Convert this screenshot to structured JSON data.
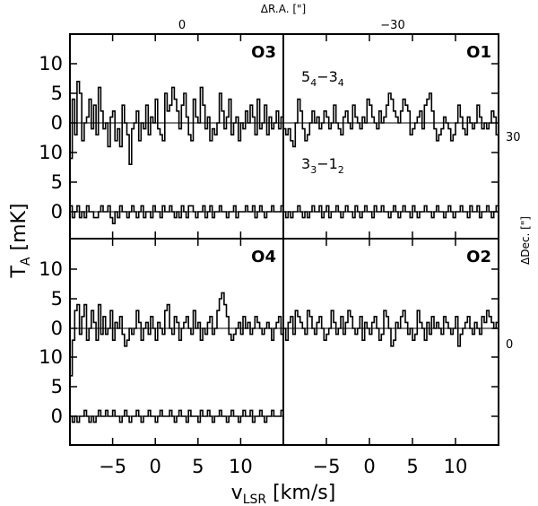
{
  "chart_data": {
    "type": "line",
    "top_axis": {
      "label": "ΔR.A. [\"]",
      "ticks": [
        "0",
        "−30"
      ]
    },
    "right_axis": {
      "label": "ΔDec. [\"]",
      "ticks": [
        "30",
        "0"
      ]
    },
    "ylabel_main": "T",
    "ylabel_sub": "A",
    "ylabel_unit": " [mK]",
    "xlabel_main": "v",
    "xlabel_sub": "LSR",
    "xlabel_unit": " [km/s]",
    "xlim": [
      -10,
      15
    ],
    "x_ticks": [
      -5,
      0,
      5,
      10
    ],
    "x_tick_labels": [
      "−5",
      "0",
      "5",
      "10"
    ],
    "upper_trace_ticks": [
      "0",
      "5",
      "10"
    ],
    "lower_trace_ticks": [
      "0",
      "5",
      "10"
    ],
    "transitions": [
      {
        "main": "5",
        "sub1": "4",
        "dash": "−3",
        "sub2": "4"
      },
      {
        "main": "3",
        "sub1": "3",
        "dash": "−1",
        "sub2": "2"
      }
    ],
    "panels": [
      {
        "label": "O3",
        "upper_values": [
          -6,
          4,
          -2,
          7,
          5,
          -3,
          0,
          1,
          4,
          -1,
          3,
          -2,
          6,
          2,
          -1,
          0,
          -4,
          1,
          2,
          -3,
          -1,
          -4,
          3,
          0,
          -2,
          -7,
          -1,
          0,
          2,
          -3,
          0,
          -1,
          3,
          -2,
          1,
          0,
          4,
          -1,
          -2,
          -3,
          5,
          2,
          3,
          6,
          4,
          2,
          -1,
          3,
          5,
          1,
          -2,
          -3,
          4,
          1,
          0,
          6,
          3,
          -1,
          1,
          -3,
          -1,
          -2,
          0,
          5,
          2,
          -1,
          1,
          4,
          -2,
          0,
          1,
          -3,
          0,
          -1,
          2,
          0,
          3,
          1,
          -2,
          4,
          -1,
          0,
          3,
          -2,
          1,
          -1,
          0,
          2,
          -1,
          1
        ],
        "lower_values": [
          1,
          -1,
          0,
          1,
          -1,
          0,
          -1,
          1,
          0,
          0,
          -1,
          -1,
          0,
          1,
          0,
          0,
          1,
          -1,
          -2,
          0,
          -1,
          1,
          0,
          0,
          -1,
          0,
          1,
          0,
          -1,
          0,
          1,
          -1,
          0,
          0,
          -1,
          1,
          0,
          0,
          -1,
          1,
          0,
          0,
          1,
          0,
          -1,
          0,
          -1,
          1,
          0,
          -1,
          1,
          1,
          0,
          -1,
          0,
          0,
          1,
          -1,
          0,
          1,
          -1,
          0,
          0,
          1,
          0,
          0,
          -1,
          0,
          0,
          1,
          -1,
          0,
          0,
          0,
          1,
          0,
          0,
          1,
          -1,
          0,
          1,
          0,
          -1,
          0,
          0,
          1,
          0,
          0,
          0,
          1
        ]
      },
      {
        "label": "O1",
        "upper_values": [
          -1,
          -2,
          -1,
          -3,
          -4,
          0,
          4,
          2,
          -1,
          -3,
          -2,
          0,
          2,
          0,
          1,
          -1,
          0,
          2,
          1,
          -1,
          0,
          3,
          0,
          -1,
          -2,
          1,
          2,
          0,
          -1,
          3,
          1,
          0,
          -1,
          1,
          0,
          4,
          3,
          1,
          0,
          -1,
          2,
          0,
          1,
          3,
          5,
          4,
          2,
          1,
          0,
          2,
          4,
          3,
          2,
          -2,
          -1,
          0,
          1,
          2,
          -1,
          3,
          4,
          5,
          2,
          -1,
          -3,
          -2,
          -1,
          1,
          0,
          -1,
          -3,
          -2,
          0,
          3,
          1,
          -1,
          -2,
          1,
          0,
          -1,
          0,
          3,
          1,
          -1,
          0,
          -1,
          0,
          2,
          1,
          -2
        ],
        "lower_values": [
          0,
          -1,
          0,
          -1,
          0,
          0,
          1,
          0,
          -1,
          0,
          -1,
          0,
          1,
          0,
          0,
          1,
          -1,
          0,
          1,
          -1,
          0,
          0,
          1,
          0,
          -1,
          0,
          1,
          0,
          0,
          -1,
          1,
          0,
          -1,
          0,
          1,
          0,
          0,
          -1,
          1,
          0,
          0,
          1,
          0,
          0,
          -1,
          0,
          1,
          0,
          -1,
          0,
          1,
          0,
          0,
          -1,
          1,
          0,
          -1,
          0,
          0,
          1,
          0,
          0,
          -1,
          0,
          1,
          0,
          0,
          -1,
          0,
          1,
          0,
          -1,
          0,
          0,
          1,
          0,
          0,
          -1,
          1,
          0,
          0,
          1,
          -1,
          0,
          0,
          1,
          0,
          -1,
          0,
          1
        ]
      },
      {
        "label": "O4",
        "upper_values": [
          -8,
          -2,
          3,
          4,
          -1,
          2,
          4,
          -2,
          0,
          3,
          1,
          -2,
          4,
          -1,
          2,
          -1,
          0,
          3,
          -2,
          1,
          0,
          2,
          -1,
          -3,
          -2,
          0,
          -1,
          0,
          3,
          1,
          -2,
          0,
          1,
          -1,
          2,
          0,
          -2,
          1,
          0,
          -1,
          3,
          4,
          0,
          -1,
          2,
          1,
          -2,
          0,
          1,
          2,
          0,
          -1,
          3,
          0,
          1,
          -2,
          0,
          -1,
          1,
          2,
          -1,
          0,
          3,
          5,
          6,
          4,
          2,
          -1,
          -2,
          -1,
          0,
          1,
          -1,
          2,
          0,
          1,
          -1,
          0,
          2,
          1,
          0,
          -1,
          0,
          1,
          0,
          -2,
          0,
          1,
          2,
          -1
        ],
        "lower_values": [
          0,
          -1,
          0,
          -1,
          0,
          0,
          1,
          0,
          -1,
          0,
          -1,
          0,
          1,
          0,
          0,
          1,
          0,
          0,
          1,
          0,
          0,
          -1,
          0,
          1,
          0,
          -1,
          0,
          0,
          1,
          0,
          -1,
          0,
          0,
          1,
          0,
          0,
          -1,
          0,
          1,
          0,
          0,
          0,
          1,
          0,
          -1,
          0,
          1,
          0,
          0,
          -1,
          1,
          0,
          0,
          0,
          -1,
          1,
          0,
          0,
          1,
          0,
          -1,
          0,
          0,
          1,
          0,
          0,
          -1,
          0,
          1,
          0,
          0,
          -1,
          0,
          1,
          0,
          0,
          1,
          -1,
          0,
          0,
          1,
          0,
          -1,
          0,
          0,
          1,
          0,
          0,
          0,
          1
        ]
      },
      {
        "label": "O2",
        "upper_values": [
          0,
          -2,
          1,
          2,
          -1,
          3,
          2,
          1,
          0,
          -1,
          3,
          2,
          0,
          -1,
          1,
          2,
          0,
          -2,
          -1,
          0,
          3,
          1,
          -1,
          0,
          2,
          -1,
          1,
          3,
          2,
          0,
          -1,
          0,
          2,
          -2,
          1,
          0,
          -1,
          1,
          2,
          0,
          -2,
          -1,
          3,
          2,
          0,
          -3,
          -2,
          1,
          0,
          2,
          3,
          1,
          -1,
          0,
          -2,
          -1,
          3,
          1,
          0,
          -2,
          1,
          -1,
          2,
          0,
          1,
          0,
          -1,
          2,
          1,
          0,
          -1,
          0,
          2,
          -3,
          -1,
          0,
          1,
          2,
          0,
          -1,
          1,
          0,
          -1,
          2,
          1,
          3,
          2,
          1,
          0,
          1
        ],
        "lower_values": []
      }
    ]
  }
}
